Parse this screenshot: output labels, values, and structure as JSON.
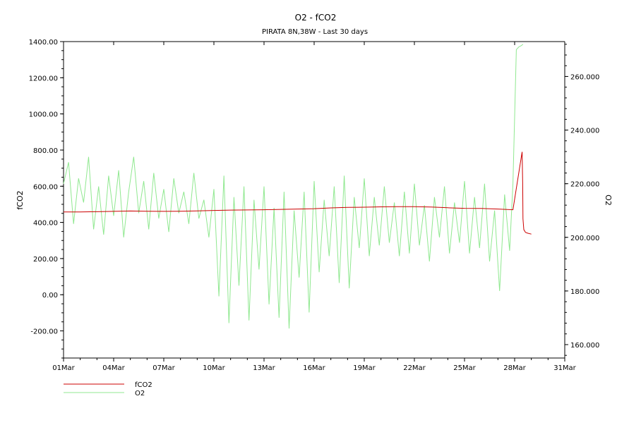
{
  "chart_data": {
    "type": "line",
    "title": "O2 - fCO2",
    "subtitle": "PIRATA 8N,38W - Last 30 days",
    "ylabel_left": "fCO2",
    "ylabel_right": "O2",
    "x_ticks": [
      "01Mar",
      "04Mar",
      "07Mar",
      "10Mar",
      "13Mar",
      "16Mar",
      "19Mar",
      "22Mar",
      "25Mar",
      "28Mar",
      "31Mar"
    ],
    "xlim": [
      1,
      31
    ],
    "ylim_left": [
      -350,
      1400
    ],
    "ylim_right": [
      155,
      273
    ],
    "y_ticks_left": [
      "-200.00",
      "0.00",
      "200.00",
      "400.00",
      "600.00",
      "800.00",
      "1000.00",
      "1200.00",
      "1400.00"
    ],
    "y_ticks_right": [
      "160.000",
      "180.000",
      "200.000",
      "220.000",
      "240.000",
      "260.000"
    ],
    "grid": false,
    "legend_position": "bottom-left",
    "series": [
      {
        "name": "fCO2",
        "color": "#cc0000",
        "axis": "left",
        "x": [
          1,
          2,
          3,
          4,
          5,
          6,
          7,
          8,
          9,
          10,
          11,
          12,
          13,
          14,
          15,
          16,
          17,
          18,
          19,
          20,
          21,
          22,
          23,
          24,
          25,
          26,
          27,
          27.9,
          28.45,
          28.48,
          28.5,
          28.55,
          28.65,
          28.8,
          29
        ],
        "values": [
          458,
          458,
          459,
          461,
          463,
          462,
          461,
          462,
          464,
          466,
          468,
          469,
          470,
          472,
          474,
          476,
          480,
          483,
          484,
          486,
          487,
          487,
          485,
          481,
          478,
          477,
          474,
          470,
          790,
          615,
          420,
          360,
          345,
          340,
          335
        ]
      },
      {
        "name": "O2",
        "color": "#90e890",
        "axis": "right",
        "x": [
          1,
          1.3,
          1.6,
          1.9,
          2.2,
          2.5,
          2.8,
          3.1,
          3.4,
          3.7,
          4,
          4.3,
          4.6,
          4.9,
          5.2,
          5.5,
          5.8,
          6.1,
          6.4,
          6.7,
          7,
          7.3,
          7.6,
          7.9,
          8.2,
          8.5,
          8.8,
          9.1,
          9.4,
          9.7,
          10,
          10.3,
          10.6,
          10.9,
          11.2,
          11.5,
          11.8,
          12.1,
          12.4,
          12.7,
          13,
          13.3,
          13.6,
          13.9,
          14.2,
          14.5,
          14.8,
          15.1,
          15.4,
          15.7,
          16,
          16.3,
          16.6,
          16.9,
          17.2,
          17.5,
          17.8,
          18.1,
          18.4,
          18.7,
          19,
          19.3,
          19.6,
          19.9,
          20.2,
          20.5,
          20.8,
          21.1,
          21.4,
          21.7,
          22,
          22.3,
          22.6,
          22.9,
          23.2,
          23.5,
          23.8,
          24.1,
          24.4,
          24.7,
          25,
          25.3,
          25.6,
          25.9,
          26.2,
          26.5,
          26.8,
          27.1,
          27.4,
          27.7,
          27.9,
          28.1,
          28.25,
          28.4,
          28.5
        ],
        "values": [
          220,
          228,
          205,
          222,
          213,
          230,
          203,
          219,
          201,
          223,
          208,
          225,
          200,
          217,
          230,
          209,
          221,
          203,
          224,
          207,
          218,
          202,
          222,
          209,
          217,
          205,
          224,
          207,
          214,
          200,
          218,
          178,
          223,
          168,
          215,
          182,
          219,
          169,
          214,
          188,
          219,
          175,
          211,
          170,
          217,
          166,
          210,
          185,
          217,
          172,
          221,
          187,
          214,
          193,
          219,
          183,
          223,
          181,
          215,
          196,
          222,
          193,
          215,
          197,
          219,
          198,
          213,
          193,
          217,
          194,
          220,
          197,
          212,
          191,
          215,
          200,
          219,
          194,
          213,
          198,
          221,
          194,
          215,
          196,
          220,
          191,
          210,
          180,
          216,
          195,
          220,
          270,
          271,
          271.5,
          272
        ]
      }
    ]
  }
}
